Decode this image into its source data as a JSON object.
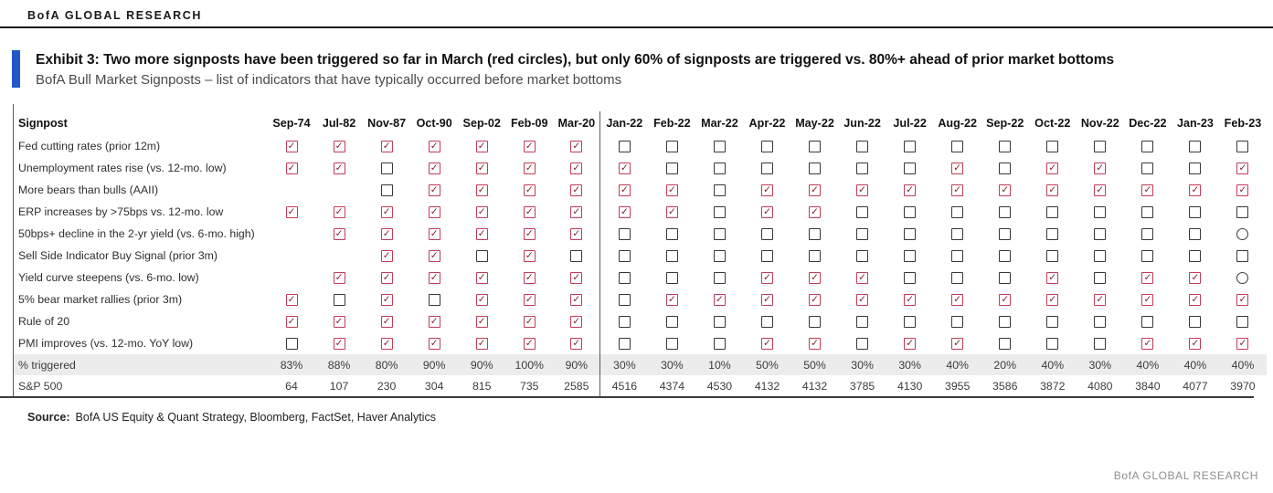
{
  "header": {
    "brand": "BofA GLOBAL RESEARCH"
  },
  "exhibit": {
    "title": "Exhibit 3: Two more signposts have been triggered so far in March (red circles), but only 60% of signposts are triggered vs. 80%+ ahead of prior market bottoms",
    "subtitle": "BofA Bull Market Signposts – list of indicators that have typically occurred before market bottoms"
  },
  "colors": {
    "accent_blue": "#2158c8",
    "checkbox_red": "#c43b55",
    "checkmark_dark_red": "#7d1b30",
    "unchecked_gray": "#383838",
    "shade_band": "#ececec"
  },
  "table": {
    "signpost_header": "Signpost",
    "columns": [
      "Sep-74",
      "Jul-82",
      "Nov-87",
      "Oct-90",
      "Sep-02",
      "Feb-09",
      "Mar-20",
      "Jan-22",
      "Feb-22",
      "Mar-22",
      "Apr-22",
      "May-22",
      "Jun-22",
      "Jul-22",
      "Aug-22",
      "Sep-22",
      "Oct-22",
      "Nov-22",
      "Dec-22",
      "Jan-23",
      "Feb-23"
    ],
    "divider_after_index": 6,
    "cell_legend": {
      "c": "checked",
      "u": "unchecked",
      "o": "circle",
      "": "blank"
    },
    "rows": [
      {
        "label": "Fed cutting rates (prior 12m)",
        "cells": [
          "c",
          "c",
          "c",
          "c",
          "c",
          "c",
          "c",
          "u",
          "u",
          "u",
          "u",
          "u",
          "u",
          "u",
          "u",
          "u",
          "u",
          "u",
          "u",
          "u",
          "u"
        ]
      },
      {
        "label": "Unemployment rates rise (vs. 12-mo. low)",
        "cells": [
          "c",
          "c",
          "u",
          "c",
          "c",
          "c",
          "c",
          "c",
          "u",
          "u",
          "u",
          "u",
          "u",
          "u",
          "c",
          "u",
          "c",
          "c",
          "u",
          "u",
          "c"
        ]
      },
      {
        "label": "More bears than bulls (AAII)",
        "cells": [
          "",
          "",
          "u",
          "c",
          "c",
          "c",
          "c",
          "c",
          "c",
          "u",
          "c",
          "c",
          "c",
          "c",
          "c",
          "c",
          "c",
          "c",
          "c",
          "c",
          "c"
        ]
      },
      {
        "label": "ERP increases by >75bps vs. 12-mo. low",
        "cells": [
          "c",
          "c",
          "c",
          "c",
          "c",
          "c",
          "c",
          "c",
          "c",
          "u",
          "c",
          "c",
          "u",
          "u",
          "u",
          "u",
          "u",
          "u",
          "u",
          "u",
          "u"
        ]
      },
      {
        "label": "50bps+ decline in the 2-yr yield (vs. 6-mo. high)",
        "cells": [
          "",
          "c",
          "c",
          "c",
          "c",
          "c",
          "c",
          "u",
          "u",
          "u",
          "u",
          "u",
          "u",
          "u",
          "u",
          "u",
          "u",
          "u",
          "u",
          "u",
          "o"
        ]
      },
      {
        "label": "Sell Side Indicator Buy Signal (prior 3m)",
        "cells": [
          "",
          "",
          "c",
          "c",
          "u",
          "c",
          "u",
          "u",
          "u",
          "u",
          "u",
          "u",
          "u",
          "u",
          "u",
          "u",
          "u",
          "u",
          "u",
          "u",
          "u"
        ]
      },
      {
        "label": "Yield curve steepens (vs. 6-mo. low)",
        "cells": [
          "",
          "c",
          "c",
          "c",
          "c",
          "c",
          "c",
          "u",
          "u",
          "u",
          "c",
          "c",
          "c",
          "u",
          "u",
          "u",
          "c",
          "u",
          "c",
          "c",
          "o"
        ]
      },
      {
        "label": "5% bear market rallies (prior 3m)",
        "cells": [
          "c",
          "u",
          "c",
          "u",
          "c",
          "c",
          "c",
          "u",
          "c",
          "c",
          "c",
          "c",
          "c",
          "c",
          "c",
          "c",
          "c",
          "c",
          "c",
          "c",
          "c"
        ]
      },
      {
        "label": "Rule of 20",
        "cells": [
          "c",
          "c",
          "c",
          "c",
          "c",
          "c",
          "c",
          "u",
          "u",
          "u",
          "u",
          "u",
          "u",
          "u",
          "u",
          "u",
          "u",
          "u",
          "u",
          "u",
          "u"
        ]
      },
      {
        "label": "PMI improves (vs. 12-mo. YoY low)",
        "cells": [
          "u",
          "c",
          "c",
          "c",
          "c",
          "c",
          "c",
          "u",
          "u",
          "u",
          "c",
          "c",
          "u",
          "c",
          "c",
          "u",
          "u",
          "u",
          "c",
          "c",
          "c"
        ]
      }
    ],
    "summary_rows": [
      {
        "label": "% triggered",
        "values": [
          "83%",
          "88%",
          "80%",
          "90%",
          "90%",
          "100%",
          "90%",
          "30%",
          "30%",
          "10%",
          "50%",
          "50%",
          "30%",
          "30%",
          "40%",
          "20%",
          "40%",
          "30%",
          "40%",
          "40%",
          "40%"
        ]
      },
      {
        "label": "S&P 500",
        "values": [
          "64",
          "107",
          "230",
          "304",
          "815",
          "735",
          "2585",
          "4516",
          "4374",
          "4530",
          "4132",
          "4132",
          "3785",
          "4130",
          "3955",
          "3586",
          "3872",
          "4080",
          "3840",
          "4077",
          "3970"
        ]
      }
    ]
  },
  "source": {
    "label": "Source:",
    "text": "BofA US Equity & Quant Strategy, Bloomberg, FactSet, Haver Analytics"
  },
  "footer": {
    "brand": "BofA GLOBAL RESEARCH"
  }
}
